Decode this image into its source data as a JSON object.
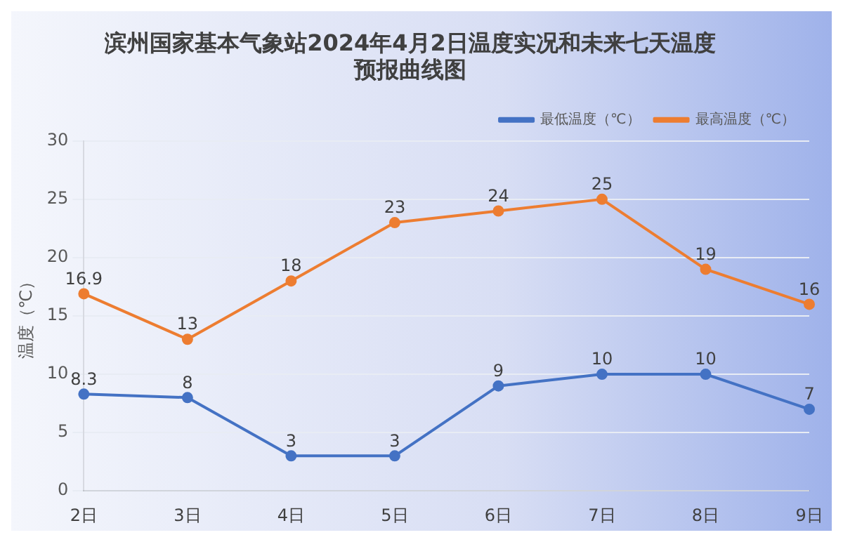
{
  "chart_data": {
    "type": "line",
    "title": [
      "滨州国家基本气象站2024年4月2日温度实况和未来七天温度",
      "预报曲线图"
    ],
    "ylabel": "温度（℃）",
    "categories": [
      "2日",
      "3日",
      "4日",
      "5日",
      "6日",
      "7日",
      "8日",
      "9日"
    ],
    "series": [
      {
        "name": "最低温度（℃）",
        "color": "#4472c4",
        "values": [
          8.3,
          8,
          3,
          3,
          9,
          10,
          10,
          7
        ]
      },
      {
        "name": "最高温度（℃）",
        "color": "#ed7d31",
        "values": [
          16.9,
          13,
          18,
          23,
          24,
          25,
          19,
          16
        ]
      }
    ],
    "ylim": [
      0,
      30
    ],
    "yticks": [
      0,
      5,
      10,
      15,
      20,
      25,
      30
    ],
    "grid": "y",
    "legend": "top right",
    "marker": "circle",
    "line_style": "solid",
    "data_labels": true
  }
}
